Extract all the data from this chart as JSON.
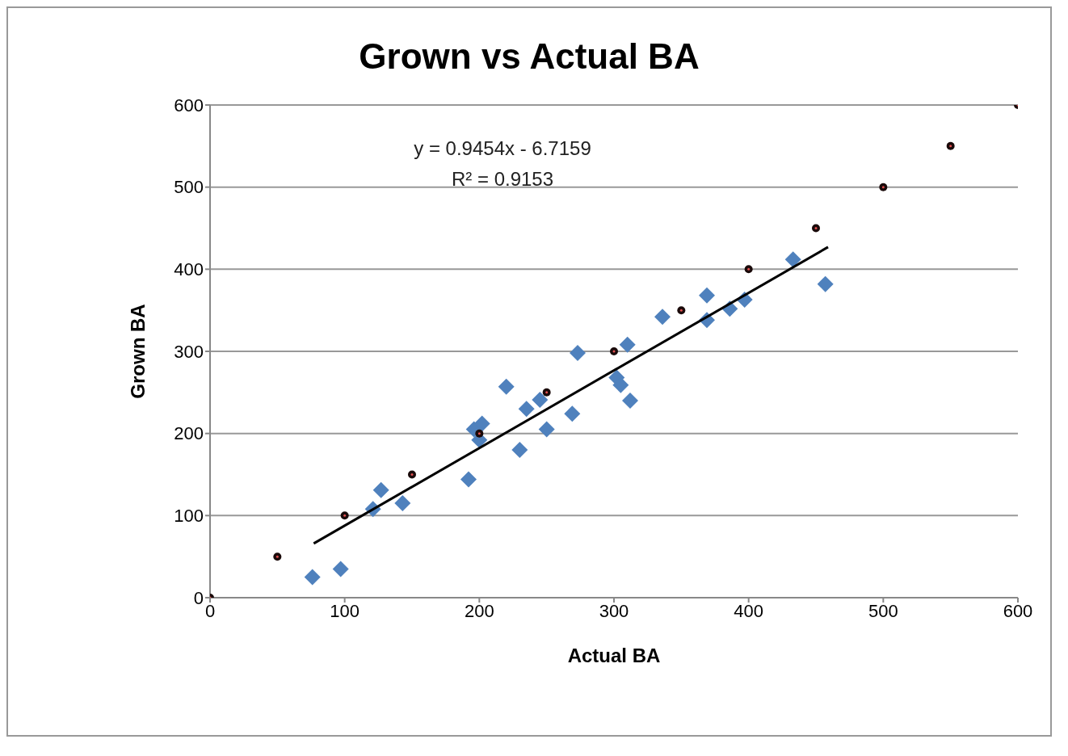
{
  "chart_data": {
    "type": "scatter",
    "title": "Grown vs Actual BA",
    "xlabel": "Actual BA",
    "ylabel": "Grown BA",
    "xlim": [
      0,
      600
    ],
    "xticks": [
      0,
      100,
      200,
      300,
      400,
      500,
      600
    ],
    "ylim": [
      0,
      600
    ],
    "yticks": [
      0,
      100,
      200,
      300,
      400,
      500,
      600
    ],
    "grid": "y",
    "legend": false,
    "annotations": [
      "y = 0.9454x - 6.7159",
      "R² = 0.9153"
    ],
    "series": [
      {
        "marker": "diamond",
        "color": "#4f81bd",
        "x": [
          76,
          96,
          97,
          121,
          127,
          143,
          192,
          195,
          196,
          202,
          200,
          220,
          230,
          235,
          245,
          250,
          269,
          273,
          302,
          305,
          312,
          310,
          336,
          369,
          369,
          386,
          397,
          433,
          457
        ],
        "values": [
          25,
          null,
          35,
          108,
          131,
          115,
          144,
          null,
          205,
          212,
          192,
          257,
          180,
          230,
          241,
          205,
          224,
          298,
          268,
          259,
          240,
          308,
          342,
          368,
          338,
          352,
          363,
          412,
          382
        ]
      },
      {
        "marker": "circle",
        "color": "#1a0a0a",
        "x": [
          0,
          50,
          100,
          150,
          200,
          250,
          300,
          350,
          400,
          450,
          500,
          550,
          600
        ],
        "values": [
          0,
          50,
          100,
          150,
          200,
          250,
          300,
          350,
          400,
          450,
          500,
          550,
          600
        ]
      },
      {
        "type": "line",
        "marker": "none",
        "color": "#000000",
        "x": [
          77,
          459
        ],
        "values": [
          66,
          427
        ]
      }
    ]
  }
}
